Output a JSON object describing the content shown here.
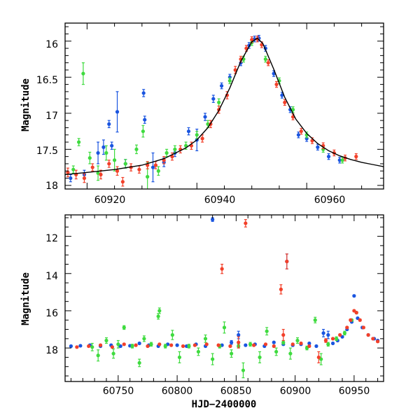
{
  "chart_data": [
    {
      "type": "scatter",
      "panel": "top",
      "title": "",
      "xlabel": "",
      "ylabel": "Magnitude",
      "xlim": [
        60916,
        60974
      ],
      "ylim": [
        18.05,
        15.75
      ],
      "y_inverted": true,
      "x_ticks": [
        60920,
        60940,
        60960
      ],
      "x_tick_labels": [
        "60920",
        "60940",
        "60960"
      ],
      "y_ticks": [
        16,
        16.5,
        17,
        17.5,
        18
      ],
      "y_tick_labels": [
        "16",
        "16.5",
        "17",
        "17.5",
        "18"
      ],
      "legend": "none",
      "colors": {
        "blue": "#1a55e0",
        "green": "#3fdb3f",
        "red": "#f2402a",
        "model": "#000000"
      },
      "model_curve": {
        "name": "fit",
        "x": [
          60916,
          60920,
          60925,
          60930,
          60934,
          60938,
          60940,
          60942,
          60944,
          60946,
          60948,
          60950,
          60951,
          60952,
          60954,
          60956,
          60958,
          60960,
          60962,
          60964,
          60966,
          60968,
          60970,
          60972,
          60974
        ],
        "y": [
          17.85,
          17.82,
          17.78,
          17.72,
          17.63,
          17.48,
          17.37,
          17.2,
          16.96,
          16.65,
          16.28,
          16.01,
          15.96,
          16.03,
          16.39,
          16.78,
          17.08,
          17.28,
          17.42,
          17.52,
          17.59,
          17.64,
          17.68,
          17.71,
          17.74
        ]
      },
      "series": [
        {
          "name": "blue",
          "x": [
            60917,
            60919.5,
            60922,
            60923,
            60924,
            60924.5,
            60925.5,
            60927,
            60930.3,
            60930.5,
            60932,
            60934,
            60936,
            60938.5,
            60940,
            60941.5,
            60943,
            60944.5,
            60946,
            60948,
            60949.5,
            60950.5,
            60951.3,
            60952.5,
            60954,
            60955.5,
            60957,
            60958.5,
            60960,
            60962,
            60964,
            60966
          ],
          "y": [
            17.9,
            17.85,
            17.55,
            17.47,
            17.15,
            17.45,
            16.98,
            17.7,
            16.72,
            17.09,
            17.75,
            17.68,
            17.55,
            17.25,
            17.37,
            17.05,
            16.8,
            16.62,
            16.5,
            16.3,
            16.06,
            15.97,
            15.96,
            16.1,
            16.45,
            16.75,
            16.95,
            17.3,
            17.35,
            17.47,
            17.6,
            17.65
          ],
          "err": [
            0.05,
            0.06,
            0.15,
            0.1,
            0.05,
            0.05,
            0.28,
            0.06,
            0.05,
            0.05,
            0.2,
            0.06,
            0.05,
            0.05,
            0.15,
            0.05,
            0.05,
            0.04,
            0.04,
            0.04,
            0.04,
            0.04,
            0.04,
            0.04,
            0.04,
            0.04,
            0.04,
            0.04,
            0.04,
            0.04,
            0.04,
            0.04
          ]
        },
        {
          "name": "green",
          "x": [
            60917.5,
            60918.5,
            60919.3,
            60920.5,
            60922,
            60923.5,
            60925,
            60927,
            60929,
            60930.2,
            60931,
            60933,
            60934.5,
            60936,
            60938,
            60940,
            60942,
            60944,
            60946,
            60948.5,
            60950,
            60952.5,
            60955,
            60957.5,
            60960,
            60963,
            60966.5
          ],
          "y": [
            17.78,
            17.4,
            16.45,
            17.62,
            17.83,
            17.55,
            17.65,
            17.7,
            17.5,
            17.25,
            17.88,
            17.8,
            17.55,
            17.5,
            17.45,
            17.3,
            17.15,
            16.85,
            16.55,
            16.25,
            16.02,
            16.25,
            16.55,
            16.95,
            17.3,
            17.5,
            17.65
          ],
          "err": [
            0.05,
            0.05,
            0.15,
            0.08,
            0.1,
            0.1,
            0.15,
            0.06,
            0.06,
            0.08,
            0.2,
            0.06,
            0.05,
            0.05,
            0.05,
            0.05,
            0.05,
            0.05,
            0.04,
            0.04,
            0.04,
            0.04,
            0.04,
            0.04,
            0.04,
            0.04,
            0.04
          ]
        },
        {
          "name": "red",
          "x": [
            60916.5,
            60918,
            60919.5,
            60921,
            60922.5,
            60924,
            60925.5,
            60926.5,
            60928,
            60929.5,
            60931,
            60932.5,
            60934,
            60935.5,
            60937,
            60939,
            60941,
            60942.5,
            60944,
            60945.5,
            60947,
            60948,
            60949,
            60950,
            60951,
            60951.8,
            60953,
            60954.5,
            60956,
            60957.5,
            60959,
            60961,
            60963,
            60965,
            60967,
            60969
          ],
          "y": [
            17.82,
            17.85,
            17.9,
            17.75,
            17.85,
            17.7,
            17.8,
            17.95,
            17.75,
            17.78,
            17.72,
            17.72,
            17.65,
            17.6,
            17.5,
            17.45,
            17.35,
            17.15,
            16.95,
            16.75,
            16.4,
            16.25,
            16.1,
            15.98,
            15.97,
            16.05,
            16.3,
            16.6,
            16.85,
            17.05,
            17.25,
            17.38,
            17.45,
            17.55,
            17.62,
            17.6
          ],
          "err": [
            0.06,
            0.06,
            0.06,
            0.05,
            0.06,
            0.05,
            0.06,
            0.06,
            0.05,
            0.05,
            0.05,
            0.05,
            0.05,
            0.05,
            0.05,
            0.05,
            0.05,
            0.05,
            0.05,
            0.05,
            0.05,
            0.04,
            0.04,
            0.04,
            0.04,
            0.04,
            0.04,
            0.04,
            0.04,
            0.04,
            0.04,
            0.04,
            0.04,
            0.04,
            0.04,
            0.04
          ]
        }
      ]
    },
    {
      "type": "scatter",
      "panel": "bottom",
      "title": "",
      "xlabel": "HJD−2400000",
      "ylabel": "Magnitude",
      "xlim": [
        60705,
        60975
      ],
      "ylim": [
        19.8,
        10.85
      ],
      "y_inverted": true,
      "x_ticks": [
        60750,
        60800,
        60850,
        60900,
        60950
      ],
      "x_tick_labels": [
        "60750",
        "60800",
        "60850",
        "60900",
        "60950"
      ],
      "y_ticks": [
        12,
        14,
        16,
        18
      ],
      "y_tick_labels": [
        "12",
        "14",
        "16",
        "18"
      ],
      "legend": "none",
      "colors": {
        "blue": "#1a55e0",
        "green": "#3fdb3f",
        "red": "#f2402a"
      },
      "series": [
        {
          "name": "blue",
          "x": [
            60710,
            60718,
            60726,
            60735,
            60744,
            60752,
            60760,
            60768,
            60776,
            60784,
            60792,
            60800,
            60808,
            60816,
            60824,
            60830,
            60838,
            60846,
            60852,
            60858,
            60866,
            60874,
            60882,
            60890,
            60893,
            60898,
            60905,
            60912,
            60918,
            60924,
            60928,
            60932,
            60936,
            60940,
            60944,
            60948,
            60950,
            60953,
            60957,
            60962,
            60967,
            60970
          ],
          "y": [
            17.9,
            17.88,
            17.85,
            17.9,
            17.85,
            17.9,
            17.88,
            17.75,
            17.85,
            17.9,
            17.8,
            17.85,
            17.9,
            17.8,
            17.9,
            11.1,
            17.85,
            17.7,
            17.3,
            17.85,
            17.8,
            17.9,
            17.7,
            17.8,
            13.35,
            17.85,
            17.8,
            17.75,
            17.9,
            17.2,
            17.3,
            17.75,
            17.6,
            17.4,
            17.0,
            16.6,
            15.2,
            16.4,
            16.9,
            17.3,
            17.5,
            17.6
          ],
          "err": [
            0.05,
            0.05,
            0.05,
            0.05,
            0.05,
            0.05,
            0.05,
            0.05,
            0.05,
            0.05,
            0.05,
            0.05,
            0.05,
            0.05,
            0.05,
            0.1,
            0.05,
            0.1,
            0.2,
            0.05,
            0.05,
            0.05,
            0.05,
            0.05,
            0.4,
            0.05,
            0.05,
            0.05,
            0.05,
            0.2,
            0.2,
            0.05,
            0.05,
            0.05,
            0.05,
            0.05,
            0.05,
            0.05,
            0.05,
            0.05,
            0.05,
            0.05
          ]
        },
        {
          "name": "green",
          "x": [
            60728,
            60733,
            60740,
            60746,
            60750,
            60755,
            60762,
            60768,
            60772,
            60778,
            60784,
            60785,
            60790,
            60796,
            60802,
            60810,
            60818,
            60824,
            60830,
            60836,
            60840,
            60846,
            60852,
            60856,
            60862,
            60870,
            60876,
            60884,
            60890,
            60896,
            60902,
            60910,
            60917,
            60922,
            60928,
            60935,
            60942,
            60948,
            60952
          ],
          "y": [
            17.95,
            18.4,
            17.6,
            18.3,
            17.8,
            16.9,
            17.9,
            18.8,
            17.5,
            17.8,
            16.3,
            16.0,
            17.9,
            17.3,
            18.5,
            17.9,
            18.2,
            17.5,
            18.6,
            17.9,
            16.9,
            18.3,
            17.9,
            19.2,
            17.8,
            18.5,
            17.1,
            18.2,
            17.7,
            18.3,
            17.6,
            18.0,
            16.5,
            18.6,
            17.8,
            17.5,
            17.2,
            16.5,
            16.1
          ],
          "err": [
            0.2,
            0.3,
            0.15,
            0.25,
            0.2,
            0.1,
            0.1,
            0.2,
            0.15,
            0.1,
            0.15,
            0.15,
            0.1,
            0.25,
            0.3,
            0.1,
            0.2,
            0.2,
            0.3,
            0.1,
            0.3,
            0.2,
            0.1,
            0.4,
            0.1,
            0.3,
            0.2,
            0.2,
            0.1,
            0.3,
            0.15,
            0.1,
            0.15,
            0.3,
            0.1,
            0.1,
            0.1,
            0.05,
            0.05
          ]
        },
        {
          "name": "red",
          "x": [
            60715,
            60725,
            60735,
            60745,
            60755,
            60765,
            60775,
            60785,
            60795,
            60805,
            60815,
            60825,
            60835,
            60838,
            60845,
            60852,
            60858,
            60865,
            60875,
            60882,
            60888,
            60890,
            60893,
            60898,
            60905,
            60912,
            60920,
            60926,
            60932,
            60938,
            60944,
            60947,
            60950,
            60952,
            60955,
            60958,
            60962,
            60966,
            60970
          ],
          "y": [
            17.95,
            17.9,
            17.85,
            17.95,
            17.8,
            17.85,
            17.9,
            17.8,
            17.85,
            17.9,
            17.85,
            17.8,
            17.85,
            13.75,
            17.9,
            17.7,
            11.3,
            17.85,
            17.8,
            17.9,
            14.85,
            17.3,
            13.35,
            17.8,
            17.75,
            17.9,
            18.5,
            17.6,
            17.5,
            17.3,
            16.9,
            16.5,
            16.0,
            16.1,
            16.5,
            16.9,
            17.3,
            17.5,
            17.65
          ],
          "err": [
            0.05,
            0.05,
            0.05,
            0.05,
            0.05,
            0.05,
            0.05,
            0.05,
            0.05,
            0.05,
            0.05,
            0.05,
            0.05,
            0.25,
            0.05,
            0.3,
            0.2,
            0.05,
            0.05,
            0.05,
            0.25,
            0.3,
            0.4,
            0.05,
            0.05,
            0.05,
            0.3,
            0.1,
            0.05,
            0.05,
            0.05,
            0.05,
            0.05,
            0.05,
            0.05,
            0.05,
            0.05,
            0.05,
            0.05
          ]
        }
      ]
    }
  ]
}
